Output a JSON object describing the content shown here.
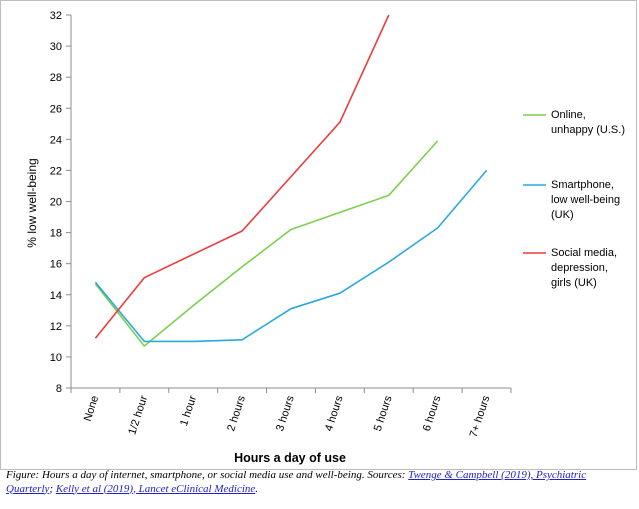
{
  "chart_data": {
    "type": "line",
    "categories": [
      "None",
      "1/2 hour",
      "1 hour",
      "2 hours",
      "3 hours",
      "4 hours",
      "5 hours",
      "6 hours",
      "7+ hours"
    ],
    "xlabel": "Hours a day of use",
    "ylabel": "% low well-being",
    "ylim": [
      8,
      32
    ],
    "yticks": [
      8,
      10,
      12,
      14,
      16,
      18,
      20,
      22,
      24,
      26,
      28,
      30,
      32
    ],
    "grid": false,
    "legend_position": "right",
    "series": [
      {
        "name": "Online, unhappy (U.S.)",
        "name_lines": [
          "Online,",
          "unhappy (U.S.)"
        ],
        "color": "#7dcf4f",
        "values": [
          14.7,
          10.7,
          13.3,
          15.8,
          18.2,
          19.3,
          20.4,
          23.9,
          null
        ]
      },
      {
        "name": "Smartphone, low well-being (UK)",
        "name_lines": [
          "Smartphone,",
          "low well-being",
          "(UK)"
        ],
        "color": "#2aa9e0",
        "values": [
          14.8,
          11.0,
          11.0,
          11.1,
          13.1,
          14.1,
          16.1,
          18.3,
          22.0
        ]
      },
      {
        "name": "Social media, depression, girls (UK)",
        "name_lines": [
          "Social media,",
          "depression,",
          "girls (UK)"
        ],
        "color": "#ee3b3b",
        "values": [
          11.2,
          15.1,
          16.6,
          18.1,
          21.6,
          25.1,
          32.0,
          null,
          null
        ]
      }
    ]
  },
  "caption": {
    "prefix": "Figure: Hours a day of internet, smartphone, or social media use and well-being. Sources: ",
    "link1": "Twenge & Campbell (2019), Psychiatric Quarterly",
    "separator": "; ",
    "link2": "Kelly et al (2019), Lancet eClinical Medicine",
    "suffix": "."
  }
}
